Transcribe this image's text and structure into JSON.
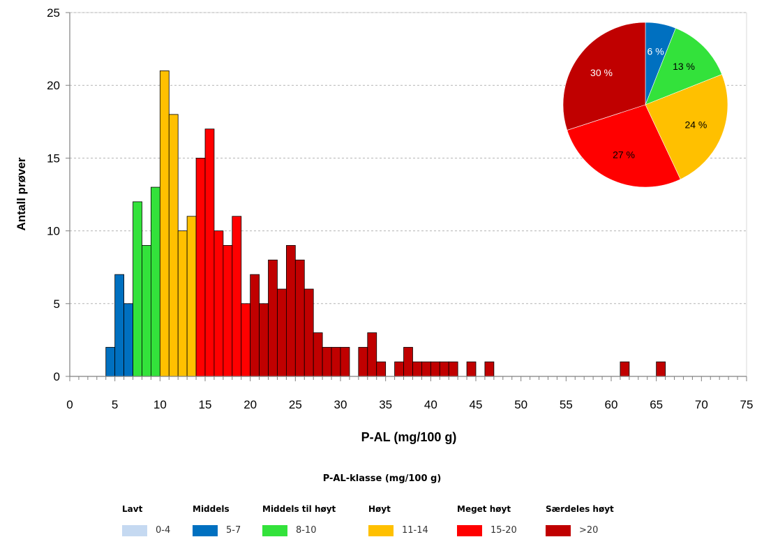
{
  "chart_data": [
    {
      "type": "bar",
      "xlabel": "P-AL (mg/100 g)",
      "ylabel": "Antall prøver",
      "xlim": [
        0,
        75
      ],
      "ylim": [
        0,
        25
      ],
      "x_ticks": [
        0,
        5,
        10,
        15,
        20,
        25,
        30,
        35,
        40,
        45,
        50,
        55,
        60,
        65,
        70,
        75
      ],
      "y_ticks": [
        0,
        5,
        10,
        15,
        20,
        25
      ],
      "grid": "horizontal dashed",
      "bin_width": 1,
      "bins": [
        {
          "x": 5,
          "value": 2,
          "class": "middels"
        },
        {
          "x": 6,
          "value": 7,
          "class": "middels"
        },
        {
          "x": 7,
          "value": 5,
          "class": "middels"
        },
        {
          "x": 8,
          "value": 12,
          "class": "middels_til_hoyt"
        },
        {
          "x": 9,
          "value": 9,
          "class": "middels_til_hoyt"
        },
        {
          "x": 10,
          "value": 13,
          "class": "middels_til_hoyt"
        },
        {
          "x": 11,
          "value": 21,
          "class": "hoyt"
        },
        {
          "x": 12,
          "value": 18,
          "class": "hoyt"
        },
        {
          "x": 13,
          "value": 10,
          "class": "hoyt"
        },
        {
          "x": 14,
          "value": 11,
          "class": "hoyt"
        },
        {
          "x": 15,
          "value": 15,
          "class": "meget_hoyt"
        },
        {
          "x": 16,
          "value": 17,
          "class": "meget_hoyt"
        },
        {
          "x": 17,
          "value": 10,
          "class": "meget_hoyt"
        },
        {
          "x": 18,
          "value": 9,
          "class": "meget_hoyt"
        },
        {
          "x": 19,
          "value": 11,
          "class": "meget_hoyt"
        },
        {
          "x": 20,
          "value": 5,
          "class": "meget_hoyt"
        },
        {
          "x": 21,
          "value": 7,
          "class": "saerdeles_hoyt"
        },
        {
          "x": 22,
          "value": 5,
          "class": "saerdeles_hoyt"
        },
        {
          "x": 23,
          "value": 8,
          "class": "saerdeles_hoyt"
        },
        {
          "x": 24,
          "value": 6,
          "class": "saerdeles_hoyt"
        },
        {
          "x": 25,
          "value": 9,
          "class": "saerdeles_hoyt"
        },
        {
          "x": 26,
          "value": 8,
          "class": "saerdeles_hoyt"
        },
        {
          "x": 27,
          "value": 6,
          "class": "saerdeles_hoyt"
        },
        {
          "x": 28,
          "value": 3,
          "class": "saerdeles_hoyt"
        },
        {
          "x": 29,
          "value": 2,
          "class": "saerdeles_hoyt"
        },
        {
          "x": 30,
          "value": 2,
          "class": "saerdeles_hoyt"
        },
        {
          "x": 31,
          "value": 2,
          "class": "saerdeles_hoyt"
        },
        {
          "x": 33,
          "value": 2,
          "class": "saerdeles_hoyt"
        },
        {
          "x": 34,
          "value": 3,
          "class": "saerdeles_hoyt"
        },
        {
          "x": 35,
          "value": 1,
          "class": "saerdeles_hoyt"
        },
        {
          "x": 37,
          "value": 1,
          "class": "saerdeles_hoyt"
        },
        {
          "x": 38,
          "value": 2,
          "class": "saerdeles_hoyt"
        },
        {
          "x": 39,
          "value": 1,
          "class": "saerdeles_hoyt"
        },
        {
          "x": 40,
          "value": 1,
          "class": "saerdeles_hoyt"
        },
        {
          "x": 41,
          "value": 1,
          "class": "saerdeles_hoyt"
        },
        {
          "x": 42,
          "value": 1,
          "class": "saerdeles_hoyt"
        },
        {
          "x": 43,
          "value": 1,
          "class": "saerdeles_hoyt"
        },
        {
          "x": 45,
          "value": 1,
          "class": "saerdeles_hoyt"
        },
        {
          "x": 47,
          "value": 1,
          "class": "saerdeles_hoyt"
        },
        {
          "x": 62,
          "value": 1,
          "class": "saerdeles_hoyt"
        },
        {
          "x": 66,
          "value": 1,
          "class": "saerdeles_hoyt"
        }
      ]
    },
    {
      "type": "pie",
      "slices": [
        {
          "class": "middels",
          "value": 6,
          "label": "6 %"
        },
        {
          "class": "middels_til_hoyt",
          "value": 13,
          "label": "13 %"
        },
        {
          "class": "hoyt",
          "value": 24,
          "label": "24 %"
        },
        {
          "class": "meget_hoyt",
          "value": 27,
          "label": "27 %"
        },
        {
          "class": "saerdeles_hoyt",
          "value": 30,
          "label": "30 %"
        }
      ]
    }
  ],
  "legend": {
    "title": "P-AL-klasse (mg/100 g)",
    "items": [
      {
        "id": "lavt",
        "name": "Lavt",
        "range": "0-4",
        "color": "#c5d9f1"
      },
      {
        "id": "middels",
        "name": "Middels",
        "range": "5-7",
        "color": "#0070c0"
      },
      {
        "id": "middels_til_hoyt",
        "name": "Middels til høyt",
        "range": "8-10",
        "color": "#33e23b"
      },
      {
        "id": "hoyt",
        "name": "Høyt",
        "range": "11-14",
        "color": "#ffc000"
      },
      {
        "id": "meget_hoyt",
        "name": "Meget høyt",
        "range": "15-20",
        "color": "#ff0000"
      },
      {
        "id": "saerdeles_hoyt",
        "name": "Særdeles høyt",
        "range": ">20",
        "color": "#c00000"
      }
    ]
  },
  "colors": {
    "grid": "#b3b3b3",
    "axis": "#808080",
    "bar_outline": "#000000"
  }
}
